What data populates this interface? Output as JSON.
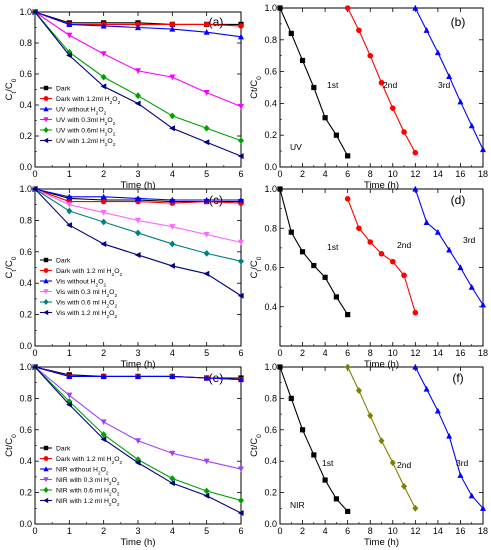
{
  "chart_data": [
    {
      "id": "a",
      "type": "line",
      "panel_label": "(a)",
      "xlabel": "Time (h)",
      "ylabel_main": "C",
      "ylabel_sub": "t",
      "ylabel_slash": "/C",
      "ylabel_sub2": "0",
      "xlim": [
        0,
        6
      ],
      "ylim": [
        0,
        1.0
      ],
      "xticks": [
        0,
        1,
        2,
        3,
        4,
        5,
        6
      ],
      "yticks": [
        0,
        0.2,
        0.4,
        0.6,
        0.8,
        1.0
      ],
      "ytick_labels": [
        "0.0",
        "0.2",
        "0.4",
        "0.6",
        "0.8",
        "1.0"
      ],
      "legend_position": "bottom-left",
      "x": [
        0,
        1,
        2,
        3,
        4,
        5,
        6
      ],
      "series": [
        {
          "name": "Dark",
          "color": "#000000",
          "marker": "square",
          "values": [
            1.0,
            0.93,
            0.93,
            0.93,
            0.92,
            0.92,
            0.92
          ]
        },
        {
          "name": "Dark with 1.2ml H",
          "name_sub": "2",
          "name_tail": "O",
          "name_sub2": "2",
          "color": "#ff0000",
          "marker": "circle",
          "values": [
            1.0,
            0.92,
            0.92,
            0.92,
            0.92,
            0.92,
            0.91
          ]
        },
        {
          "name": "UV without H",
          "name_sub": "2",
          "name_tail": "O",
          "name_sub2": "2",
          "color": "#0000ff",
          "marker": "triangle-up",
          "values": [
            1.0,
            0.92,
            0.91,
            0.9,
            0.89,
            0.87,
            0.84
          ]
        },
        {
          "name": "UV with 0.3ml H",
          "name_sub": "2",
          "name_tail": "O",
          "name_sub2": "2",
          "color": "#ff00ff",
          "marker": "triangle-down",
          "values": [
            1.0,
            0.85,
            0.73,
            0.62,
            0.58,
            0.48,
            0.39
          ]
        },
        {
          "name": "UV with 0.6ml H",
          "name_sub": "2",
          "name_tail": "O",
          "name_sub2": "2",
          "color": "#00a000",
          "marker": "diamond",
          "values": [
            1.0,
            0.74,
            0.58,
            0.46,
            0.33,
            0.25,
            0.17
          ]
        },
        {
          "name": "UV with 1.2ml H",
          "name_sub": "2",
          "name_tail": "O",
          "name_sub2": "2",
          "color": "#000080",
          "marker": "triangle-left",
          "values": [
            1.0,
            0.72,
            0.52,
            0.41,
            0.25,
            0.16,
            0.07
          ]
        }
      ]
    },
    {
      "id": "b",
      "type": "line",
      "panel_label": "(b)",
      "xlabel": "Time (h)",
      "ylabel_main": "Ct/C",
      "ylabel_sub": "0",
      "xlim": [
        0,
        18
      ],
      "ylim": [
        0,
        1.0
      ],
      "xticks": [
        0,
        2,
        4,
        6,
        8,
        10,
        12,
        14,
        16,
        18
      ],
      "yticks": [
        0,
        0.2,
        0.4,
        0.6,
        0.8,
        1.0
      ],
      "ytick_labels": [
        "0.0",
        "0.2",
        "0.4",
        "0.6",
        "0.8",
        "1.0"
      ],
      "corner_text": "UV",
      "series": [
        {
          "name": "1st",
          "color": "#000000",
          "marker": "square",
          "x": [
            0,
            1,
            2,
            3,
            4,
            5,
            6
          ],
          "values": [
            1.0,
            0.84,
            0.67,
            0.5,
            0.31,
            0.2,
            0.07
          ]
        },
        {
          "name": "2nd",
          "color": "#ff0000",
          "marker": "circle",
          "x": [
            6,
            7,
            8,
            9,
            10,
            11,
            12
          ],
          "values": [
            1.0,
            0.86,
            0.7,
            0.53,
            0.37,
            0.22,
            0.09
          ]
        },
        {
          "name": "3rd",
          "color": "#0000ff",
          "marker": "triangle-up",
          "x": [
            12,
            13,
            14,
            15,
            16,
            17,
            18
          ],
          "values": [
            1.0,
            0.86,
            0.72,
            0.57,
            0.41,
            0.26,
            0.11
          ]
        }
      ]
    },
    {
      "id": "c",
      "type": "line",
      "panel_label": "(c)",
      "xlabel": "Time (h)",
      "ylabel_main": "C",
      "ylabel_sub": "t",
      "ylabel_slash": "/C",
      "ylabel_sub2": "0",
      "xlim": [
        0,
        6
      ],
      "ylim": [
        0,
        1.0
      ],
      "xticks": [
        0,
        1,
        2,
        3,
        4,
        5,
        6
      ],
      "yticks": [
        0,
        0.2,
        0.4,
        0.6,
        0.8,
        1.0
      ],
      "ytick_labels": [
        "0.0",
        "0.2",
        "0.4",
        "0.6",
        "0.8",
        "1.0"
      ],
      "legend_position": "bottom-left",
      "x": [
        0,
        1,
        2,
        3,
        4,
        5,
        6
      ],
      "series": [
        {
          "name": "Dark",
          "color": "#000000",
          "marker": "square",
          "values": [
            1.0,
            0.94,
            0.93,
            0.93,
            0.92,
            0.92,
            0.92
          ]
        },
        {
          "name": "Dark with 1.2 ml H",
          "name_sub": "2",
          "name_tail": "O",
          "name_sub2": "2",
          "color": "#ff0000",
          "marker": "circle",
          "values": [
            1.0,
            0.92,
            0.92,
            0.92,
            0.91,
            0.92,
            0.91
          ]
        },
        {
          "name": "Vis without H",
          "name_sub": "2",
          "name_tail": "O",
          "name_sub2": "2",
          "color": "#0000ff",
          "marker": "triangle-up",
          "values": [
            1.0,
            0.95,
            0.95,
            0.94,
            0.93,
            0.93,
            0.93
          ]
        },
        {
          "name": "Vis with 0.3 ml H",
          "name_sub": "2",
          "name_tail": "O",
          "name_sub2": "2",
          "color": "#ff66ff",
          "marker": "triangle-down",
          "values": [
            1.0,
            0.9,
            0.85,
            0.8,
            0.76,
            0.71,
            0.66
          ]
        },
        {
          "name": "Vis with 0.6 ml H",
          "name_sub": "2",
          "name_tail": "O",
          "name_sub2": "2",
          "color": "#008080",
          "marker": "diamond",
          "values": [
            1.0,
            0.86,
            0.79,
            0.72,
            0.65,
            0.59,
            0.54
          ]
        },
        {
          "name": "Vis with 1.2 ml H",
          "name_sub": "2",
          "name_tail": "O",
          "name_sub2": "2",
          "color": "#000080",
          "marker": "triangle-left",
          "values": [
            1.0,
            0.77,
            0.65,
            0.58,
            0.51,
            0.46,
            0.32
          ]
        }
      ]
    },
    {
      "id": "d",
      "type": "line",
      "panel_label": "(d)",
      "xlabel": "Time (h)",
      "ylabel_main": "C",
      "ylabel_sub": "t",
      "ylabel_slash": "/C",
      "ylabel_sub2": "0",
      "xlim": [
        0,
        18
      ],
      "ylim": [
        0.2,
        1.0
      ],
      "xticks": [
        0,
        2,
        4,
        6,
        8,
        10,
        12,
        14,
        16,
        18
      ],
      "yticks": [
        0.2,
        0.4,
        0.6,
        0.8,
        1.0
      ],
      "ytick_labels": [
        "",
        "0.4",
        "0.6",
        "0.8",
        "1.0"
      ],
      "series": [
        {
          "name": "1st",
          "color": "#000000",
          "marker": "square",
          "x": [
            0,
            1,
            2,
            3,
            4,
            5,
            6
          ],
          "values": [
            1.0,
            0.78,
            0.68,
            0.61,
            0.55,
            0.45,
            0.36
          ]
        },
        {
          "name": "2nd",
          "color": "#ff0000",
          "marker": "circle",
          "x": [
            6,
            7,
            8,
            9,
            10,
            11,
            12
          ],
          "values": [
            0.95,
            0.8,
            0.73,
            0.67,
            0.63,
            0.56,
            0.37
          ]
        },
        {
          "name": "3rd",
          "color": "#0000ff",
          "marker": "triangle-up",
          "x": [
            12,
            13,
            14,
            15,
            16,
            17,
            18
          ],
          "values": [
            1.0,
            0.83,
            0.78,
            0.69,
            0.6,
            0.5,
            0.41
          ]
        }
      ]
    },
    {
      "id": "e",
      "type": "line",
      "panel_label": "(e)",
      "xlabel": "Time (h)",
      "ylabel_main": "Ct/C",
      "ylabel_sub": "0",
      "xlim": [
        0,
        6
      ],
      "ylim": [
        0,
        1.0
      ],
      "xticks": [
        0,
        1,
        2,
        3,
        4,
        5,
        6
      ],
      "yticks": [
        0,
        0.2,
        0.4,
        0.6,
        0.8,
        1.0
      ],
      "ytick_labels": [
        "0.0",
        "0.2",
        "0.4",
        "0.6",
        "0.8",
        "1.0"
      ],
      "legend_position": "bottom-left",
      "x": [
        0,
        1,
        2,
        3,
        4,
        5,
        6
      ],
      "series": [
        {
          "name": "Dark",
          "color": "#000000",
          "marker": "square",
          "values": [
            1.0,
            0.95,
            0.94,
            0.94,
            0.94,
            0.93,
            0.93
          ]
        },
        {
          "name": "Dark with 1.2 ml H",
          "name_sub": "2",
          "name_tail": "O",
          "name_sub2": "2",
          "color": "#ff0000",
          "marker": "circle",
          "values": [
            1.0,
            0.94,
            0.94,
            0.94,
            0.94,
            0.93,
            0.92
          ]
        },
        {
          "name": "NIR without H",
          "name_sub": "2",
          "name_tail": "O",
          "name_sub2": "2",
          "color": "#0000ff",
          "marker": "triangle-up",
          "values": [
            1.0,
            0.94,
            0.94,
            0.94,
            0.94,
            0.93,
            0.92
          ]
        },
        {
          "name": "NIR with 0.3 ml H",
          "name_sub": "2",
          "name_tail": "O",
          "name_sub2": "2",
          "color": "#a040ff",
          "marker": "triangle-down",
          "values": [
            1.0,
            0.82,
            0.65,
            0.53,
            0.45,
            0.4,
            0.35
          ]
        },
        {
          "name": "NIR with 0.6 ml H",
          "name_sub": "2",
          "name_tail": "O",
          "name_sub2": "2",
          "color": "#00a000",
          "marker": "diamond",
          "values": [
            1.0,
            0.78,
            0.57,
            0.41,
            0.29,
            0.21,
            0.15
          ]
        },
        {
          "name": "NIR with 1.2 ml H",
          "name_sub": "2",
          "name_tail": "O",
          "name_sub2": "2",
          "color": "#000080",
          "marker": "triangle-left",
          "values": [
            1.0,
            0.76,
            0.54,
            0.39,
            0.26,
            0.18,
            0.07
          ]
        }
      ]
    },
    {
      "id": "f",
      "type": "line",
      "panel_label": "(f)",
      "xlabel": "Time (h)",
      "ylabel_main": "Ct/C",
      "ylabel_sub": "0",
      "xlim": [
        0,
        18
      ],
      "ylim": [
        0,
        1.0
      ],
      "xticks": [
        0,
        2,
        4,
        6,
        8,
        10,
        12,
        14,
        16,
        18
      ],
      "yticks": [
        0,
        0.2,
        0.4,
        0.6,
        0.8,
        1.0
      ],
      "ytick_labels": [
        "0.0",
        "0.2",
        "0.4",
        "0.6",
        "0.8",
        "1.0"
      ],
      "corner_text": "NIR",
      "series": [
        {
          "name": "1st",
          "color": "#000000",
          "marker": "square",
          "x": [
            0,
            1,
            2,
            3,
            4,
            5,
            6
          ],
          "values": [
            1.0,
            0.8,
            0.6,
            0.44,
            0.28,
            0.16,
            0.08
          ]
        },
        {
          "name": "2nd",
          "color": "#808000",
          "marker": "diamond",
          "x": [
            6,
            7,
            8,
            9,
            10,
            11,
            12
          ],
          "values": [
            1.0,
            0.85,
            0.69,
            0.53,
            0.39,
            0.24,
            0.1
          ]
        },
        {
          "name": "3rd",
          "color": "#0000ff",
          "marker": "triangle-up",
          "x": [
            12,
            13,
            14,
            15,
            16,
            17,
            18
          ],
          "values": [
            1.0,
            0.86,
            0.72,
            0.56,
            0.31,
            0.18,
            0.1
          ]
        }
      ]
    }
  ]
}
